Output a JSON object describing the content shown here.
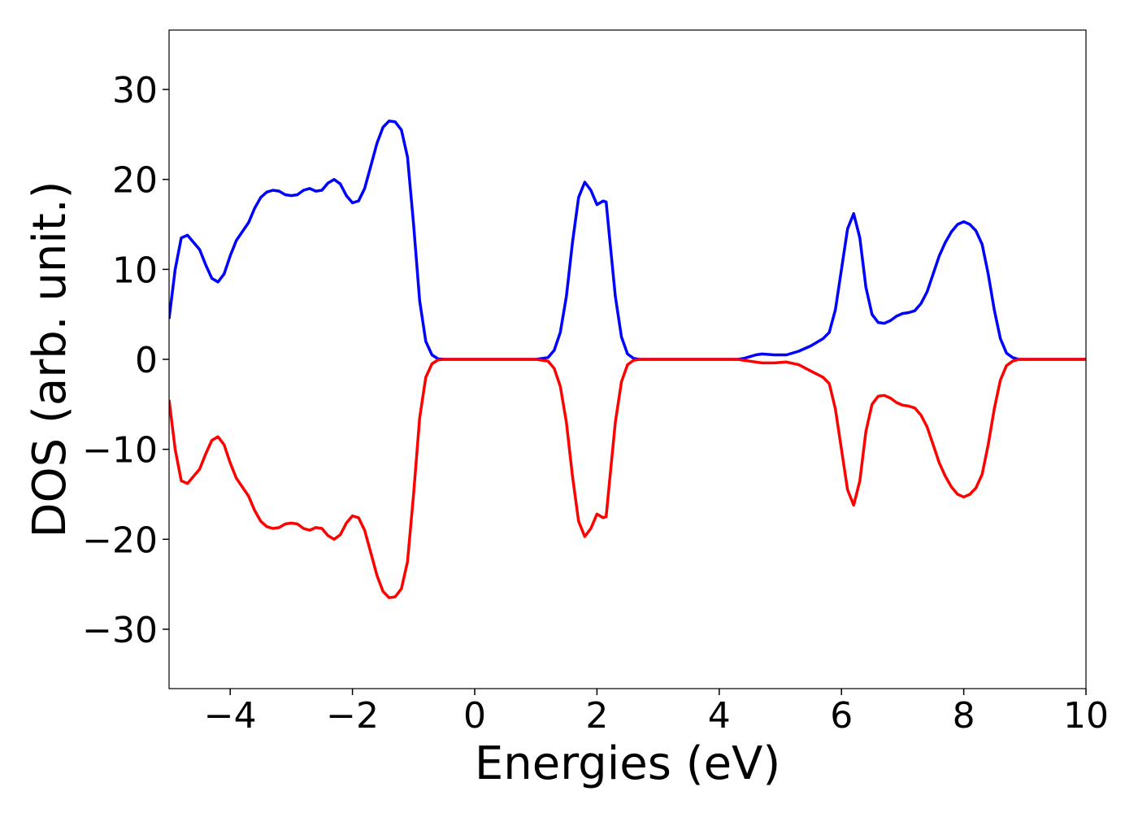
{
  "chart_data": {
    "type": "line",
    "x_label": "Energies (eV)",
    "y_label": "DOS (arb. unit.)",
    "x": [
      -5,
      -4.9,
      -4.8,
      -4.7,
      -4.6,
      -4.5,
      -4.4,
      -4.3,
      -4.2,
      -4.1,
      -4.0,
      -3.9,
      -3.8,
      -3.7,
      -3.6,
      -3.5,
      -3.4,
      -3.3,
      -3.2,
      -3.1,
      -3.0,
      -2.9,
      -2.8,
      -2.7,
      -2.6,
      -2.5,
      -2.4,
      -2.3,
      -2.2,
      -2.1,
      -2.0,
      -1.9,
      -1.8,
      -1.7,
      -1.6,
      -1.5,
      -1.4,
      -1.3,
      -1.2,
      -1.1,
      -1.0,
      -0.9,
      -0.8,
      -0.7,
      -0.6,
      -0.5,
      1.0,
      1.2,
      1.3,
      1.4,
      1.5,
      1.6,
      1.7,
      1.8,
      1.9,
      2.0,
      2.1,
      2.15,
      2.2,
      2.3,
      2.4,
      2.5,
      2.6,
      2.7,
      4.3,
      4.4,
      4.6,
      4.7,
      4.9,
      5.1,
      5.3,
      5.5,
      5.7,
      5.8,
      5.9,
      6.0,
      6.1,
      6.2,
      6.3,
      6.4,
      6.5,
      6.6,
      6.7,
      6.8,
      6.9,
      7.0,
      7.1,
      7.2,
      7.3,
      7.4,
      7.5,
      7.6,
      7.7,
      7.8,
      7.9,
      8.0,
      8.1,
      8.2,
      8.3,
      8.4,
      8.5,
      8.6,
      8.7,
      8.8,
      8.9,
      10
    ],
    "series": [
      {
        "color": "#0000ff",
        "values": [
          4.5,
          10,
          13.5,
          13.8,
          13,
          12.2,
          10.5,
          9,
          8.6,
          9.5,
          11.5,
          13.2,
          14.2,
          15.2,
          16.8,
          18,
          18.6,
          18.8,
          18.7,
          18.3,
          18.2,
          18.3,
          18.8,
          19,
          18.7,
          18.8,
          19.6,
          20,
          19.5,
          18.2,
          17.4,
          17.6,
          19,
          21.5,
          24,
          25.8,
          26.5,
          26.4,
          25.5,
          22.5,
          15,
          6.5,
          2,
          0.5,
          0.05,
          0,
          0,
          0.2,
          1,
          3,
          7,
          13,
          18,
          19.7,
          18.8,
          17.2,
          17.6,
          17.5,
          14,
          7,
          2.5,
          0.6,
          0.1,
          0,
          0,
          0.1,
          0.5,
          0.6,
          0.5,
          0.5,
          0.9,
          1.5,
          2.3,
          3,
          5.5,
          10,
          14.5,
          16.2,
          13.5,
          8,
          5,
          4.1,
          4,
          4.3,
          4.8,
          5.1,
          5.2,
          5.4,
          6.2,
          7.5,
          9.5,
          11.5,
          13,
          14.2,
          15,
          15.3,
          15,
          14.3,
          12.8,
          9.5,
          5.5,
          2.3,
          0.7,
          0.2,
          0,
          0
        ]
      },
      {
        "color": "#ff0000",
        "values": [
          -4.5,
          -10,
          -13.5,
          -13.8,
          -13,
          -12.2,
          -10.5,
          -9,
          -8.6,
          -9.5,
          -11.5,
          -13.2,
          -14.2,
          -15.2,
          -16.8,
          -18,
          -18.6,
          -18.8,
          -18.7,
          -18.3,
          -18.2,
          -18.3,
          -18.8,
          -19,
          -18.7,
          -18.8,
          -19.6,
          -20,
          -19.5,
          -18.2,
          -17.4,
          -17.6,
          -19,
          -21.5,
          -24,
          -25.8,
          -26.5,
          -26.4,
          -25.5,
          -22.5,
          -15,
          -6.5,
          -2,
          -0.5,
          -0.05,
          0,
          0,
          -0.2,
          -1,
          -3,
          -7,
          -13,
          -18,
          -19.7,
          -18.8,
          -17.2,
          -17.6,
          -17.5,
          -14,
          -7,
          -2.5,
          -0.6,
          -0.1,
          0,
          0,
          -0.1,
          -0.3,
          -0.4,
          -0.4,
          -0.3,
          -0.6,
          -1.3,
          -2,
          -2.7,
          -5.5,
          -10,
          -14.5,
          -16.2,
          -13.5,
          -8,
          -5,
          -4.1,
          -4,
          -4.3,
          -4.8,
          -5.1,
          -5.2,
          -5.4,
          -6.2,
          -7.5,
          -9.5,
          -11.5,
          -13,
          -14.2,
          -15,
          -15.3,
          -15,
          -14.3,
          -12.8,
          -9.5,
          -5.5,
          -2.3,
          -0.7,
          -0.2,
          0,
          0
        ]
      }
    ],
    "xlim": [
      -5,
      10
    ],
    "xticks": [
      {
        "value": -4,
        "label": "−4"
      },
      {
        "value": -2,
        "label": "−2"
      },
      0,
      2,
      4,
      6,
      8,
      10
    ],
    "ylim": [
      -36.6,
      36.6
    ],
    "yticks": [
      {
        "value": -30,
        "label": "−30"
      },
      {
        "value": -20,
        "label": "−20"
      },
      {
        "value": -10,
        "label": "−10"
      },
      0,
      10,
      20,
      30
    ],
    "grid": false
  }
}
